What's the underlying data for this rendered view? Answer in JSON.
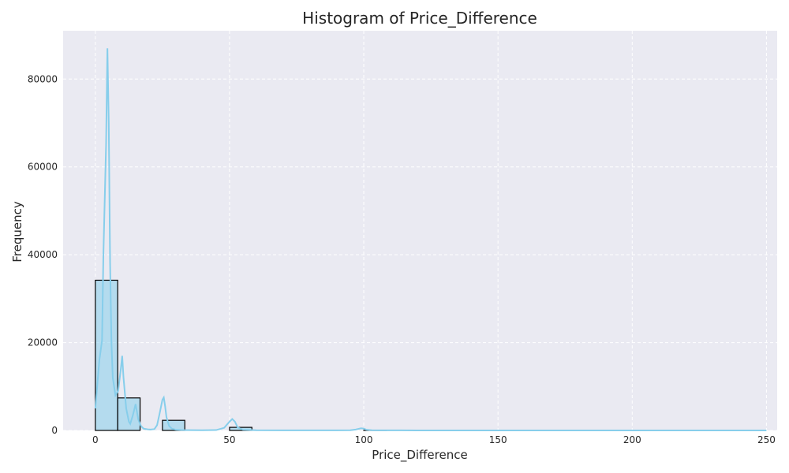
{
  "chart_data": {
    "type": "bar",
    "title": "Histogram of Price_Difference",
    "xlabel": "Price_Difference",
    "ylabel": "Frequency",
    "xlim": [
      -12,
      254
    ],
    "ylim": [
      0,
      91000
    ],
    "xticks": [
      0,
      50,
      100,
      150,
      200,
      250
    ],
    "yticks": [
      0,
      20000,
      40000,
      60000,
      80000
    ],
    "grid": true,
    "bins": [
      {
        "start": 0,
        "end": 8.33,
        "count": 34200
      },
      {
        "start": 8.33,
        "end": 16.67,
        "count": 7400
      },
      {
        "start": 16.67,
        "end": 25,
        "count": 0
      },
      {
        "start": 25,
        "end": 33.33,
        "count": 2300
      },
      {
        "start": 33.33,
        "end": 41.67,
        "count": 0
      },
      {
        "start": 41.67,
        "end": 50,
        "count": 0
      },
      {
        "start": 50,
        "end": 58.33,
        "count": 700
      },
      {
        "start": 58.33,
        "end": 66.67,
        "count": 0
      },
      {
        "start": 66.67,
        "end": 75,
        "count": 0
      },
      {
        "start": 75,
        "end": 83.33,
        "count": 0
      },
      {
        "start": 83.33,
        "end": 91.67,
        "count": 0
      },
      {
        "start": 91.67,
        "end": 100,
        "count": 0
      },
      {
        "start": 100,
        "end": 108.33,
        "count": 30
      }
    ],
    "kde": {
      "x": [
        0,
        1.5,
        2.5,
        3,
        4,
        4.5,
        5,
        5.5,
        6,
        6.5,
        7.5,
        8.5,
        9.5,
        10,
        10.5,
        11.5,
        12.5,
        13,
        14,
        15,
        16,
        17,
        18,
        19.5,
        20.5,
        22,
        23,
        24,
        25,
        25.5,
        26,
        26.5,
        27.5,
        28.5,
        30,
        32,
        35,
        40,
        45,
        48,
        50,
        51,
        52,
        53,
        55,
        60,
        70,
        80,
        90,
        95,
        97,
        99,
        100,
        101,
        103,
        106,
        120,
        150,
        200,
        250
      ],
      "y": [
        5000,
        16000,
        20500,
        40000,
        65000,
        87000,
        70000,
        38000,
        20000,
        12000,
        8000,
        9000,
        14000,
        17000,
        12000,
        5000,
        2000,
        1500,
        3500,
        6000,
        2500,
        1000,
        400,
        250,
        200,
        300,
        1200,
        4000,
        7000,
        7500,
        5500,
        3000,
        1000,
        400,
        150,
        80,
        60,
        50,
        80,
        600,
        2000,
        2600,
        2000,
        700,
        150,
        50,
        30,
        20,
        20,
        40,
        200,
        500,
        400,
        150,
        50,
        20,
        10,
        10,
        10,
        10
      ]
    },
    "colors": {
      "background": "#EAEAF2",
      "bar_fill": "#87CEEB",
      "bar_edge": "#000000",
      "kde_line": "#87CEEB",
      "grid": "#FFFFFF"
    }
  }
}
